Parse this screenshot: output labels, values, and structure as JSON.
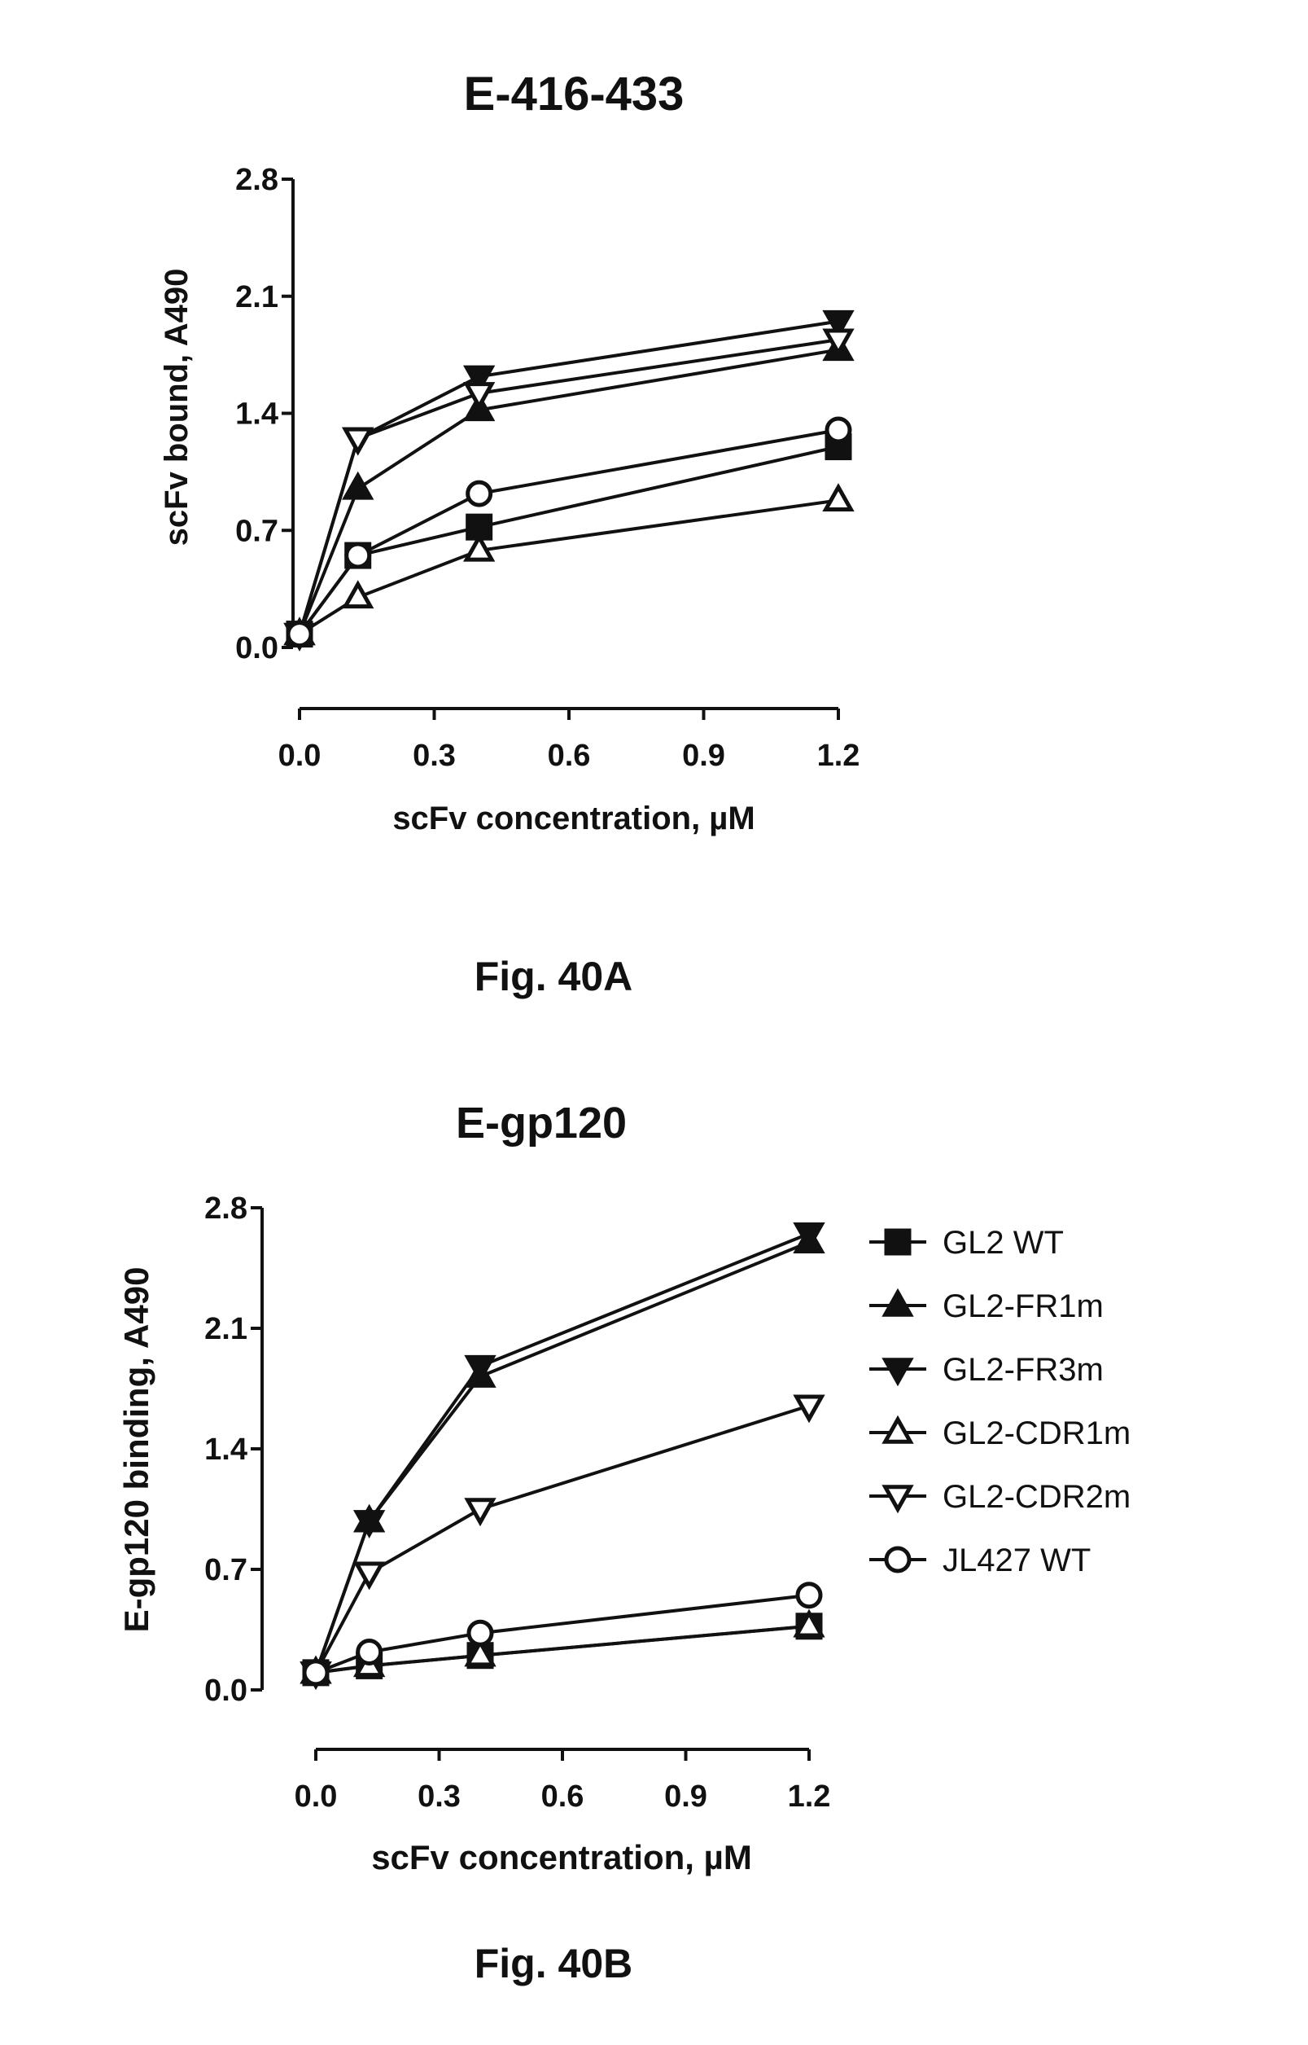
{
  "figures": [
    {
      "caption": "Fig. 40A"
    },
    {
      "caption": "Fig. 40B"
    }
  ],
  "chart_data": [
    {
      "type": "line",
      "title": "E-416-433",
      "xlabel": "scFv concentration, µM",
      "ylabel": "scFv bound, A490",
      "xlim": [
        0,
        1.2
      ],
      "ylim": [
        0,
        2.8
      ],
      "xticks": [
        "0.0",
        "0.3",
        "0.6",
        "0.9",
        "1.2"
      ],
      "yticks": [
        "0.0",
        "0.7",
        "1.4",
        "2.1",
        "2.8"
      ],
      "x": [
        0,
        0.13,
        0.4,
        1.2
      ],
      "series": [
        {
          "name": "GL2 WT",
          "marker": "square-filled",
          "values": [
            0.08,
            0.55,
            0.72,
            1.2
          ]
        },
        {
          "name": "GL2-FR1m",
          "marker": "triangle-up-filled",
          "values": [
            0.08,
            0.95,
            1.42,
            1.78
          ]
        },
        {
          "name": "GL2-FR3m",
          "marker": "triangle-down-filled",
          "values": [
            0.08,
            1.25,
            1.62,
            1.95
          ]
        },
        {
          "name": "GL2-CDR1m",
          "marker": "triangle-up-open",
          "values": [
            0.08,
            0.3,
            0.58,
            0.88
          ]
        },
        {
          "name": "GL2-CDR2m",
          "marker": "triangle-down-open",
          "values": [
            0.08,
            1.25,
            1.52,
            1.84
          ]
        },
        {
          "name": "JL427 WT",
          "marker": "circle-open",
          "values": [
            0.08,
            0.55,
            0.92,
            1.3
          ]
        }
      ],
      "legend": "none",
      "grid": false
    },
    {
      "type": "line",
      "title": "E-gp120",
      "xlabel": "scFv concentration, µM",
      "ylabel": "E-gp120 binding, A490",
      "xlim": [
        0,
        1.2
      ],
      "ylim": [
        0,
        2.8
      ],
      "xticks": [
        "0.0",
        "0.3",
        "0.6",
        "0.9",
        "1.2"
      ],
      "yticks": [
        "0.0",
        "0.7",
        "1.4",
        "2.1",
        "2.8"
      ],
      "x": [
        0,
        0.13,
        0.4,
        1.2
      ],
      "series": [
        {
          "name": "GL2 WT",
          "marker": "square-filled",
          "values": [
            0.1,
            0.14,
            0.2,
            0.37
          ]
        },
        {
          "name": "GL2-FR1m",
          "marker": "triangle-up-filled",
          "values": [
            0.1,
            0.98,
            1.82,
            2.6
          ]
        },
        {
          "name": "GL2-FR3m",
          "marker": "triangle-down-filled",
          "values": [
            0.1,
            0.98,
            1.88,
            2.65
          ]
        },
        {
          "name": "GL2-CDR1m",
          "marker": "triangle-up-open",
          "values": [
            0.1,
            0.14,
            0.2,
            0.37
          ]
        },
        {
          "name": "GL2-CDR2m",
          "marker": "triangle-down-open",
          "values": [
            0.1,
            0.68,
            1.05,
            1.65
          ]
        },
        {
          "name": "JL427 WT",
          "marker": "circle-open",
          "values": [
            0.1,
            0.22,
            0.33,
            0.55
          ]
        }
      ],
      "legend": "right",
      "grid": false
    }
  ]
}
